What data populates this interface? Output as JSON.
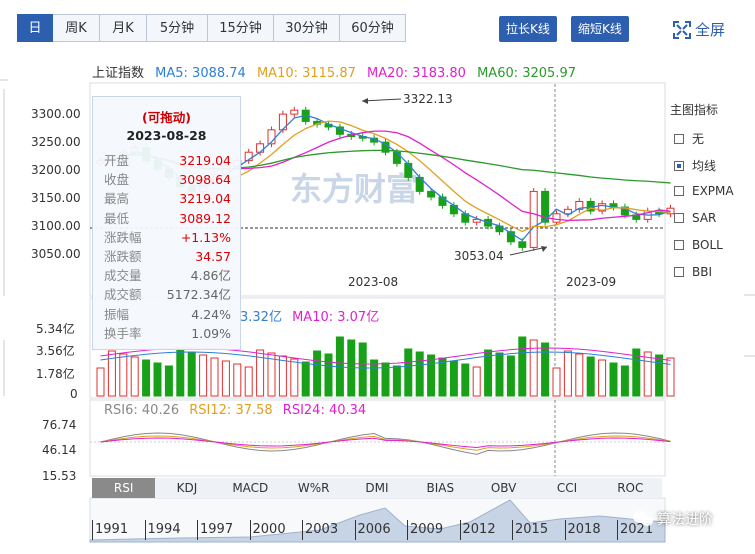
{
  "period_tabs": [
    "日K",
    "周K",
    "月K",
    "5分钟",
    "15分钟",
    "30分钟",
    "60分钟"
  ],
  "buttons": {
    "stretch": "拉长K线",
    "shrink": "缩短K线",
    "fullscreen": "全屏"
  },
  "main_legend": {
    "name": "上证指数",
    "ma5": "MA5: 3088.74",
    "ma10": "MA10: 3115.87",
    "ma20": "MA20: 3183.80",
    "ma60": "MA60: 3205.97",
    "colors": {
      "ma5": "#2f7fd6",
      "ma10": "#e0a020",
      "ma20": "#e020d0",
      "ma60": "#2a9a2a"
    }
  },
  "price_axis": [
    "3300.00",
    "3250.00",
    "3200.00",
    "3150.00",
    "3100.00",
    "3050.00"
  ],
  "date_axis": [
    "2023-08",
    "2023-09"
  ],
  "annotations": {
    "high": "3322.13",
    "low": "3053.04"
  },
  "tooltip": {
    "title": "(可拖动)",
    "date": "2023-08-28",
    "rows": [
      {
        "k": "开盘",
        "v": "3219.04",
        "c": "#d00"
      },
      {
        "k": "收盘",
        "v": "3098.64",
        "c": "#d00"
      },
      {
        "k": "最高",
        "v": "3219.04",
        "c": "#d00"
      },
      {
        "k": "最低",
        "v": "3089.12",
        "c": "#d00"
      },
      {
        "k": "涨跌幅",
        "v": "+1.13%",
        "c": "#d00"
      },
      {
        "k": "涨跌额",
        "v": "34.57",
        "c": "#d00"
      },
      {
        "k": "成交量",
        "v": "4.86亿",
        "c": "#666"
      },
      {
        "k": "成交额",
        "v": "5172.34亿",
        "c": "#666"
      },
      {
        "k": "振幅",
        "v": "4.24%",
        "c": "#666"
      },
      {
        "k": "换手率",
        "v": "1.09%",
        "c": "#666"
      }
    ]
  },
  "indicator_panel": {
    "title": "主图指标",
    "options": [
      {
        "label": "无",
        "checked": false
      },
      {
        "label": "均线",
        "checked": true
      },
      {
        "label": "EXPMA",
        "checked": false
      },
      {
        "label": "SAR",
        "checked": false
      },
      {
        "label": "BOLL",
        "checked": false
      },
      {
        "label": "BBI",
        "checked": false
      }
    ]
  },
  "volume_legend": {
    "ma5": "3.32亿",
    "ma10": "MA10: 3.07亿"
  },
  "volume_axis": [
    "5.34亿",
    "3.56亿",
    "1.78亿",
    "0"
  ],
  "rsi_legend": {
    "rsi6": "RSI6: 40.26",
    "rsi12": "RSI12: 37.58",
    "rsi24": "RSI24: 40.34"
  },
  "rsi_axis": [
    "76.74",
    "46.14",
    "15.53"
  ],
  "bottom_tabs": [
    "RSI",
    "KDJ",
    "MACD",
    "W%R",
    "DMI",
    "BIAS",
    "OBV",
    "CCI",
    "ROC"
  ],
  "year_axis": [
    "1991",
    "1994",
    "1997",
    "2000",
    "2003",
    "2006",
    "2009",
    "2012",
    "2015",
    "2018",
    "2021"
  ],
  "watermark_main": "东方财富",
  "watermark_account": "算法进阶"
}
